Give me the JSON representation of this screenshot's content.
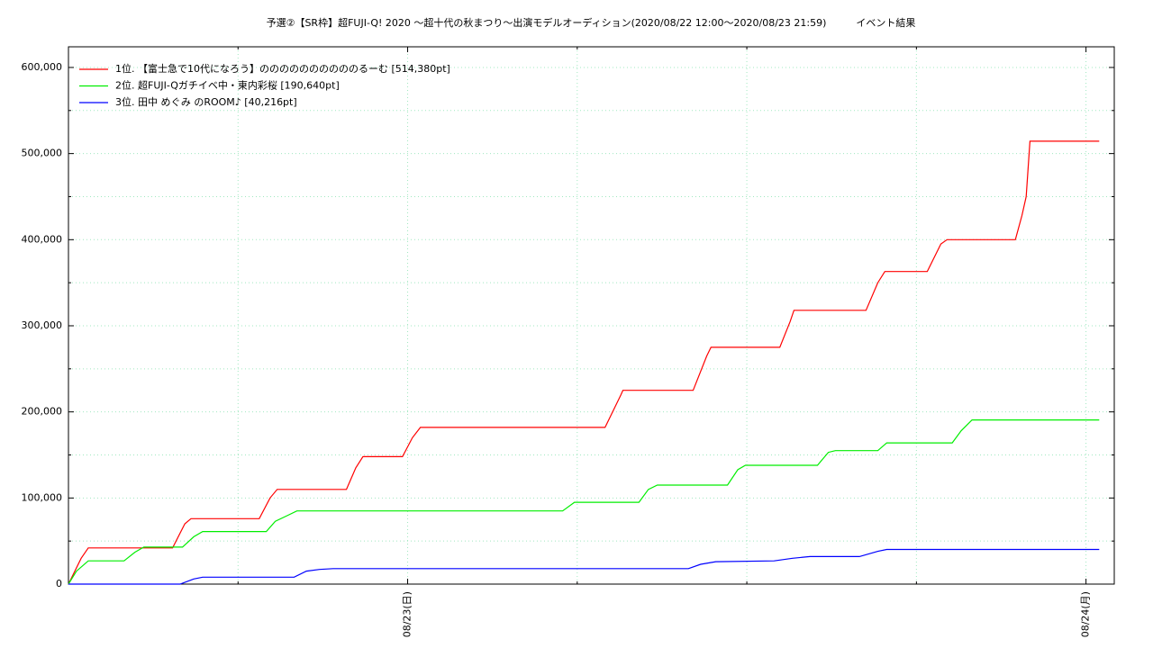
{
  "chart_data": {
    "type": "line",
    "title": "予選②【SR枠】超FUJI-Q! 2020 〜超十代の秋まつり〜出演モデルオーディション(2020/08/22 12:00〜2020/08/23 21:59)　　　イベント結果",
    "xlim": [
      "08/22 12:00",
      "08/24 01:00"
    ],
    "xticks": [
      {
        "value": "08/23 00:00",
        "label": "08/23(日)"
      },
      {
        "value": "08/24 00:00",
        "label": "08/24(月)"
      }
    ],
    "xminor": [
      "08/22 18:00",
      "08/23 06:00",
      "08/23 12:00",
      "08/23 18:00"
    ],
    "ylim": [
      0,
      624000
    ],
    "yticks": [
      0,
      {
        "value": 100000,
        "label": "100,000"
      },
      {
        "value": 200000,
        "label": "200,000"
      },
      {
        "value": 300000,
        "label": "300,000"
      },
      {
        "value": 400000,
        "label": "400,000"
      },
      {
        "value": 500000,
        "label": "500,000"
      },
      {
        "value": 600000,
        "label": "600,000"
      }
    ],
    "yminor": [
      50000,
      150000,
      250000,
      350000,
      450000,
      550000
    ],
    "grid": true,
    "legend": "top-left",
    "series": [
      {
        "name": "1位. 【富士急で10代になろう】ののののののののののるーむ [514,380pt]",
        "color": "#ff0000",
        "x": [
          "08/22 12:00",
          "08/22 12:27",
          "08/22 12:42",
          "08/22 15:41",
          "08/22 16:07",
          "08/22 16:20",
          "08/22 18:45",
          "08/22 19:08",
          "08/22 19:23",
          "08/22 21:50",
          "08/22 22:10",
          "08/22 22:25",
          "08/22 23:49",
          "08/23 00:10",
          "08/23 00:27",
          "08/23 06:59",
          "08/23 07:33",
          "08/23 07:37",
          "08/23 10:06",
          "08/23 10:35",
          "08/23 10:44",
          "08/23 13:10",
          "08/23 13:32",
          "08/23 13:40",
          "08/23 16:13",
          "08/23 16:38",
          "08/23 16:53",
          "08/23 18:23",
          "08/23 18:52",
          "08/23 19:05",
          "08/23 21:30",
          "08/23 21:44",
          "08/23 21:53",
          "08/23 22:01",
          "08/24 00:28"
        ],
        "values": [
          0,
          30000,
          42000,
          42000,
          70000,
          76000,
          76000,
          100000,
          110000,
          110000,
          135000,
          148000,
          148000,
          170000,
          182000,
          182000,
          220000,
          225000,
          225000,
          265000,
          275000,
          275000,
          305000,
          318000,
          318000,
          350000,
          363000,
          363000,
          395000,
          400000,
          400000,
          428000,
          450000,
          514380,
          514380
        ]
      },
      {
        "name": "2位. 超FUJI-Qガチイベ中・東内彩桜 [190,640pt]",
        "color": "#00ee00",
        "x": [
          "08/22 12:00",
          "08/22 12:17",
          "08/22 12:42",
          "08/22 13:58",
          "08/22 14:21",
          "08/22 14:40",
          "08/22 16:02",
          "08/22 16:26",
          "08/22 16:45",
          "08/22 19:00",
          "08/22 19:19",
          "08/22 19:46",
          "08/22 20:05",
          "08/23 05:29",
          "08/23 05:54",
          "08/23 08:11",
          "08/23 08:31",
          "08/23 08:50",
          "08/23 11:19",
          "08/23 11:41",
          "08/23 11:57",
          "08/23 14:30",
          "08/23 14:53",
          "08/23 15:08",
          "08/23 16:38",
          "08/23 16:57",
          "08/23 19:16",
          "08/23 19:35",
          "08/23 19:58",
          "08/24 00:28"
        ],
        "values": [
          0,
          15000,
          27000,
          27000,
          37000,
          43000,
          43000,
          55000,
          61000,
          61000,
          73000,
          80000,
          85000,
          85000,
          95000,
          95000,
          110000,
          115000,
          115000,
          133000,
          138000,
          138000,
          153000,
          155000,
          155000,
          164000,
          164000,
          178000,
          190640,
          190640
        ]
      },
      {
        "name": "3位. 田中 めぐみ のROOM♪ [40,216pt]",
        "color": "#0000ff",
        "x": [
          "08/22 12:00",
          "08/22 15:57",
          "08/22 16:26",
          "08/22 16:45",
          "08/22 19:59",
          "08/22 20:25",
          "08/22 20:53",
          "08/22 21:22",
          "08/23 09:56",
          "08/23 10:22",
          "08/23 10:54",
          "08/23 12:58",
          "08/23 13:37",
          "08/23 14:14",
          "08/23 15:59",
          "08/23 16:38",
          "08/23 16:57",
          "08/24 00:28"
        ],
        "values": [
          0,
          0,
          6000,
          8000,
          8000,
          15000,
          17000,
          18000,
          18000,
          23000,
          26000,
          27000,
          30000,
          32000,
          32000,
          38000,
          40216,
          40216
        ]
      }
    ]
  }
}
